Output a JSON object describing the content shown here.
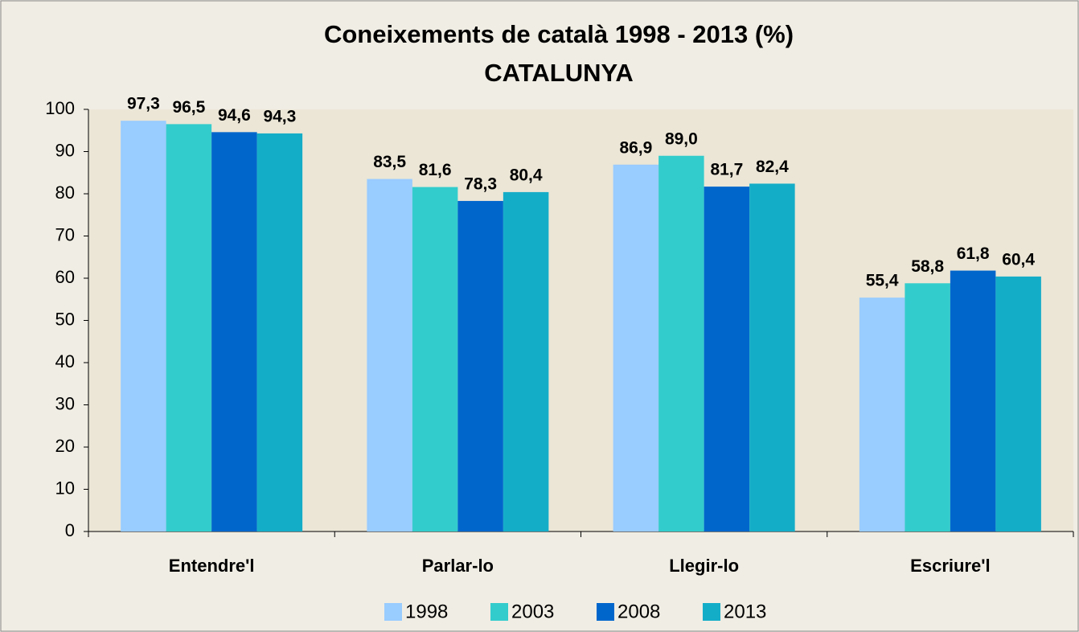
{
  "chart_data": {
    "type": "bar",
    "title": "Coneixements de català 1998 - 2013 (%)",
    "subtitle": "CATALUNYA",
    "categories": [
      "Entendre'l",
      "Parlar-lo",
      "Llegir-lo",
      "Escriure'l"
    ],
    "series": [
      {
        "name": "1998",
        "color": "#99ccff",
        "values": [
          97.3,
          83.5,
          86.9,
          55.4
        ],
        "value_labels": [
          "97,3",
          "83,5",
          "86,9",
          "55,4"
        ]
      },
      {
        "name": "2003",
        "color": "#33cccc",
        "values": [
          96.5,
          81.6,
          89.0,
          58.8
        ],
        "value_labels": [
          "96,5",
          "81,6",
          "89,0",
          "58,8"
        ]
      },
      {
        "name": "2008",
        "color": "#0066cc",
        "values": [
          94.6,
          78.3,
          81.7,
          61.8
        ],
        "value_labels": [
          "94,6",
          "78,3",
          "81,7",
          "61,8"
        ]
      },
      {
        "name": "2013",
        "color": "#14adc8",
        "values": [
          94.3,
          80.4,
          82.4,
          60.4
        ],
        "value_labels": [
          "94,3",
          "80,4",
          "82,4",
          "60,4"
        ]
      }
    ],
    "ylim": [
      0,
      100
    ],
    "yticks": [
      0,
      10,
      20,
      30,
      40,
      50,
      60,
      70,
      80,
      90,
      100
    ],
    "grid": false,
    "legend": "bottom"
  }
}
